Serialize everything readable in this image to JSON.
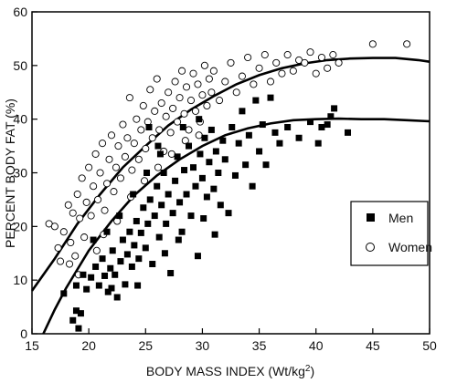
{
  "chart_data": {
    "type": "scatter",
    "title": "",
    "xlabel": "BODY MASS INDEX (Wt/kg",
    "xlabel_superscript": "2",
    "xlabel_close": ")",
    "ylabel": "PERCENT BODY FAT (%)",
    "xlim": [
      15,
      50
    ],
    "ylim": [
      0,
      60
    ],
    "xticks": [
      15,
      20,
      25,
      30,
      35,
      40,
      45,
      50
    ],
    "yticks": [
      0,
      10,
      20,
      30,
      40,
      50,
      60
    ],
    "grid": false,
    "legend": {
      "placement": "right",
      "entries": [
        "Men",
        "Women"
      ]
    },
    "series": [
      {
        "name": "Men",
        "marker": "filled-square",
        "color": "#000000",
        "points": [
          [
            17.8,
            7.5
          ],
          [
            18.6,
            2.5
          ],
          [
            18.9,
            4.3
          ],
          [
            19.1,
            1.0
          ],
          [
            19.3,
            3.8
          ],
          [
            18.9,
            9.0
          ],
          [
            19.5,
            11.0
          ],
          [
            19.8,
            8.3
          ],
          [
            20.2,
            10.5
          ],
          [
            20.6,
            12.5
          ],
          [
            20.9,
            9.0
          ],
          [
            21.2,
            14.0
          ],
          [
            21.4,
            10.8
          ],
          [
            21.7,
            7.8
          ],
          [
            21.9,
            12.2
          ],
          [
            22.1,
            15.5
          ],
          [
            22.3,
            11.0
          ],
          [
            22.5,
            6.8
          ],
          [
            22.8,
            13.5
          ],
          [
            23.0,
            17.5
          ],
          [
            23.2,
            9.2
          ],
          [
            23.4,
            14.8
          ],
          [
            23.6,
            19.0
          ],
          [
            23.8,
            12.5
          ],
          [
            24.0,
            16.5
          ],
          [
            24.2,
            21.0
          ],
          [
            24.4,
            14.0
          ],
          [
            24.6,
            18.8
          ],
          [
            24.8,
            23.5
          ],
          [
            25.0,
            16.0
          ],
          [
            25.2,
            20.5
          ],
          [
            25.4,
            25.0
          ],
          [
            25.6,
            13.0
          ],
          [
            25.8,
            22.0
          ],
          [
            26.0,
            27.5
          ],
          [
            26.2,
            18.0
          ],
          [
            26.4,
            24.0
          ],
          [
            26.6,
            30.0
          ],
          [
            26.8,
            20.5
          ],
          [
            27.0,
            26.0
          ],
          [
            27.2,
            11.3
          ],
          [
            27.4,
            22.5
          ],
          [
            27.6,
            28.5
          ],
          [
            27.8,
            33.0
          ],
          [
            28.0,
            24.5
          ],
          [
            28.2,
            19.0
          ],
          [
            28.4,
            30.5
          ],
          [
            28.6,
            26.0
          ],
          [
            28.8,
            35.0
          ],
          [
            29.0,
            22.0
          ],
          [
            29.2,
            31.0
          ],
          [
            29.4,
            27.5
          ],
          [
            29.6,
            14.5
          ],
          [
            29.8,
            33.5
          ],
          [
            30.0,
            29.0
          ],
          [
            30.2,
            36.5
          ],
          [
            30.4,
            25.5
          ],
          [
            30.6,
            32.0
          ],
          [
            30.8,
            38.0
          ],
          [
            31.0,
            27.0
          ],
          [
            31.2,
            34.0
          ],
          [
            31.4,
            30.0
          ],
          [
            31.6,
            24.0
          ],
          [
            31.8,
            36.0
          ],
          [
            32.0,
            32.5
          ],
          [
            32.3,
            22.5
          ],
          [
            32.6,
            38.5
          ],
          [
            32.9,
            29.5
          ],
          [
            33.2,
            35.5
          ],
          [
            33.5,
            41.5
          ],
          [
            33.8,
            31.5
          ],
          [
            34.1,
            37.0
          ],
          [
            34.4,
            27.5
          ],
          [
            34.7,
            43.5
          ],
          [
            35.0,
            34.0
          ],
          [
            35.3,
            39.0
          ],
          [
            35.6,
            31.5
          ],
          [
            36.0,
            44.0
          ],
          [
            36.4,
            37.5
          ],
          [
            36.8,
            35.5
          ],
          [
            37.5,
            38.5
          ],
          [
            38.5,
            36.5
          ],
          [
            39.5,
            39.5
          ],
          [
            40.2,
            35.5
          ],
          [
            40.5,
            38.5
          ],
          [
            41.0,
            39.0
          ],
          [
            41.3,
            40.5
          ],
          [
            41.6,
            42.0
          ],
          [
            42.8,
            37.5
          ],
          [
            20.4,
            17.5
          ],
          [
            21.6,
            19.0
          ],
          [
            22.7,
            22.0
          ],
          [
            23.9,
            26.0
          ],
          [
            25.1,
            30.0
          ],
          [
            26.3,
            33.5
          ],
          [
            24.3,
            9.0
          ],
          [
            22.0,
            8.5
          ],
          [
            26.7,
            15.0
          ],
          [
            27.9,
            17.5
          ],
          [
            28.3,
            38.5
          ],
          [
            30.1,
            21.5
          ],
          [
            31.1,
            18.5
          ],
          [
            29.7,
            40.0
          ],
          [
            26.1,
            35.0
          ],
          [
            25.3,
            38.5
          ]
        ]
      },
      {
        "name": "Women",
        "marker": "open-circle",
        "color": "#000000",
        "points": [
          [
            16.5,
            20.5
          ],
          [
            17.0,
            20.0
          ],
          [
            17.3,
            16.0
          ],
          [
            17.5,
            13.5
          ],
          [
            17.8,
            19.0
          ],
          [
            18.2,
            24.0
          ],
          [
            18.4,
            17.0
          ],
          [
            18.6,
            22.5
          ],
          [
            18.8,
            14.5
          ],
          [
            19.0,
            26.0
          ],
          [
            19.2,
            21.5
          ],
          [
            19.4,
            29.0
          ],
          [
            19.6,
            18.0
          ],
          [
            19.8,
            24.5
          ],
          [
            20.0,
            31.0
          ],
          [
            20.2,
            22.0
          ],
          [
            20.4,
            27.5
          ],
          [
            20.6,
            33.5
          ],
          [
            20.8,
            25.0
          ],
          [
            21.0,
            30.0
          ],
          [
            21.2,
            35.5
          ],
          [
            21.4,
            23.0
          ],
          [
            21.6,
            28.0
          ],
          [
            21.8,
            32.5
          ],
          [
            22.0,
            37.0
          ],
          [
            22.2,
            26.5
          ],
          [
            22.4,
            31.0
          ],
          [
            22.6,
            35.0
          ],
          [
            22.8,
            29.0
          ],
          [
            23.0,
            39.0
          ],
          [
            23.2,
            33.0
          ],
          [
            23.4,
            36.5
          ],
          [
            23.6,
            44.0
          ],
          [
            23.8,
            30.5
          ],
          [
            24.0,
            35.5
          ],
          [
            24.2,
            40.0
          ],
          [
            24.4,
            32.5
          ],
          [
            24.6,
            38.0
          ],
          [
            24.8,
            42.5
          ],
          [
            25.0,
            34.5
          ],
          [
            25.2,
            39.5
          ],
          [
            25.4,
            45.5
          ],
          [
            25.6,
            36.5
          ],
          [
            25.8,
            41.5
          ],
          [
            26.0,
            47.5
          ],
          [
            26.2,
            38.0
          ],
          [
            26.4,
            43.0
          ],
          [
            26.6,
            34.0
          ],
          [
            26.8,
            40.5
          ],
          [
            27.0,
            45.0
          ],
          [
            27.2,
            37.5
          ],
          [
            27.4,
            42.0
          ],
          [
            27.6,
            47.0
          ],
          [
            27.8,
            39.5
          ],
          [
            28.0,
            44.0
          ],
          [
            28.2,
            49.0
          ],
          [
            28.4,
            41.0
          ],
          [
            28.6,
            46.0
          ],
          [
            28.8,
            38.0
          ],
          [
            29.0,
            43.5
          ],
          [
            29.2,
            48.5
          ],
          [
            29.4,
            41.5
          ],
          [
            29.6,
            46.5
          ],
          [
            29.8,
            39.5
          ],
          [
            30.0,
            44.5
          ],
          [
            30.2,
            50.0
          ],
          [
            30.4,
            42.5
          ],
          [
            30.6,
            47.5
          ],
          [
            30.8,
            45.0
          ],
          [
            31.0,
            49.0
          ],
          [
            31.5,
            43.5
          ],
          [
            32.0,
            47.0
          ],
          [
            32.5,
            50.5
          ],
          [
            33.0,
            45.0
          ],
          [
            33.5,
            48.0
          ],
          [
            34.0,
            51.5
          ],
          [
            34.5,
            46.5
          ],
          [
            35.0,
            49.5
          ],
          [
            35.5,
            52.0
          ],
          [
            36.0,
            47.0
          ],
          [
            36.5,
            50.5
          ],
          [
            37.0,
            48.5
          ],
          [
            37.5,
            52.0
          ],
          [
            38.0,
            49.0
          ],
          [
            38.5,
            51.0
          ],
          [
            39.0,
            50.5
          ],
          [
            39.5,
            52.5
          ],
          [
            40.0,
            48.5
          ],
          [
            40.5,
            51.5
          ],
          [
            41.0,
            49.5
          ],
          [
            41.5,
            52.0
          ],
          [
            42.0,
            50.5
          ],
          [
            45.0,
            54.0
          ],
          [
            48.0,
            54.0
          ],
          [
            19.1,
            11.0
          ],
          [
            18.3,
            13.0
          ],
          [
            20.7,
            15.5
          ],
          [
            21.3,
            18.5
          ],
          [
            22.5,
            21.0
          ],
          [
            23.7,
            25.5
          ],
          [
            24.9,
            28.5
          ],
          [
            26.1,
            31.0
          ],
          [
            27.3,
            33.5
          ],
          [
            28.5,
            36.0
          ],
          [
            29.7,
            37.0
          ]
        ]
      }
    ],
    "fit_curves": [
      {
        "series": "Men",
        "points": [
          [
            16.0,
            0.0
          ],
          [
            17.0,
            4.5
          ],
          [
            18.0,
            8.5
          ],
          [
            20.0,
            15.5
          ],
          [
            22.0,
            21.0
          ],
          [
            24.0,
            25.8
          ],
          [
            26.0,
            29.5
          ],
          [
            28.0,
            32.5
          ],
          [
            30.0,
            35.0
          ],
          [
            32.0,
            37.0
          ],
          [
            34.0,
            38.3
          ],
          [
            36.0,
            39.2
          ],
          [
            38.0,
            39.8
          ],
          [
            40.0,
            40.0
          ],
          [
            42.0,
            40.1
          ],
          [
            44.0,
            40.0
          ],
          [
            46.0,
            40.0
          ],
          [
            48.0,
            39.8
          ],
          [
            50.0,
            39.6
          ]
        ]
      },
      {
        "series": "Women",
        "points": [
          [
            15.0,
            8.0
          ],
          [
            17.0,
            14.0
          ],
          [
            19.0,
            20.5
          ],
          [
            21.0,
            26.0
          ],
          [
            23.0,
            31.0
          ],
          [
            25.0,
            35.0
          ],
          [
            27.0,
            38.8
          ],
          [
            29.0,
            41.8
          ],
          [
            31.0,
            44.3
          ],
          [
            33.0,
            46.5
          ],
          [
            35.0,
            48.2
          ],
          [
            37.0,
            49.5
          ],
          [
            39.0,
            50.4
          ],
          [
            41.0,
            51.0
          ],
          [
            43.0,
            51.3
          ],
          [
            45.0,
            51.4
          ],
          [
            47.0,
            51.4
          ],
          [
            49.0,
            51.0
          ],
          [
            50.0,
            50.7
          ]
        ]
      }
    ]
  }
}
